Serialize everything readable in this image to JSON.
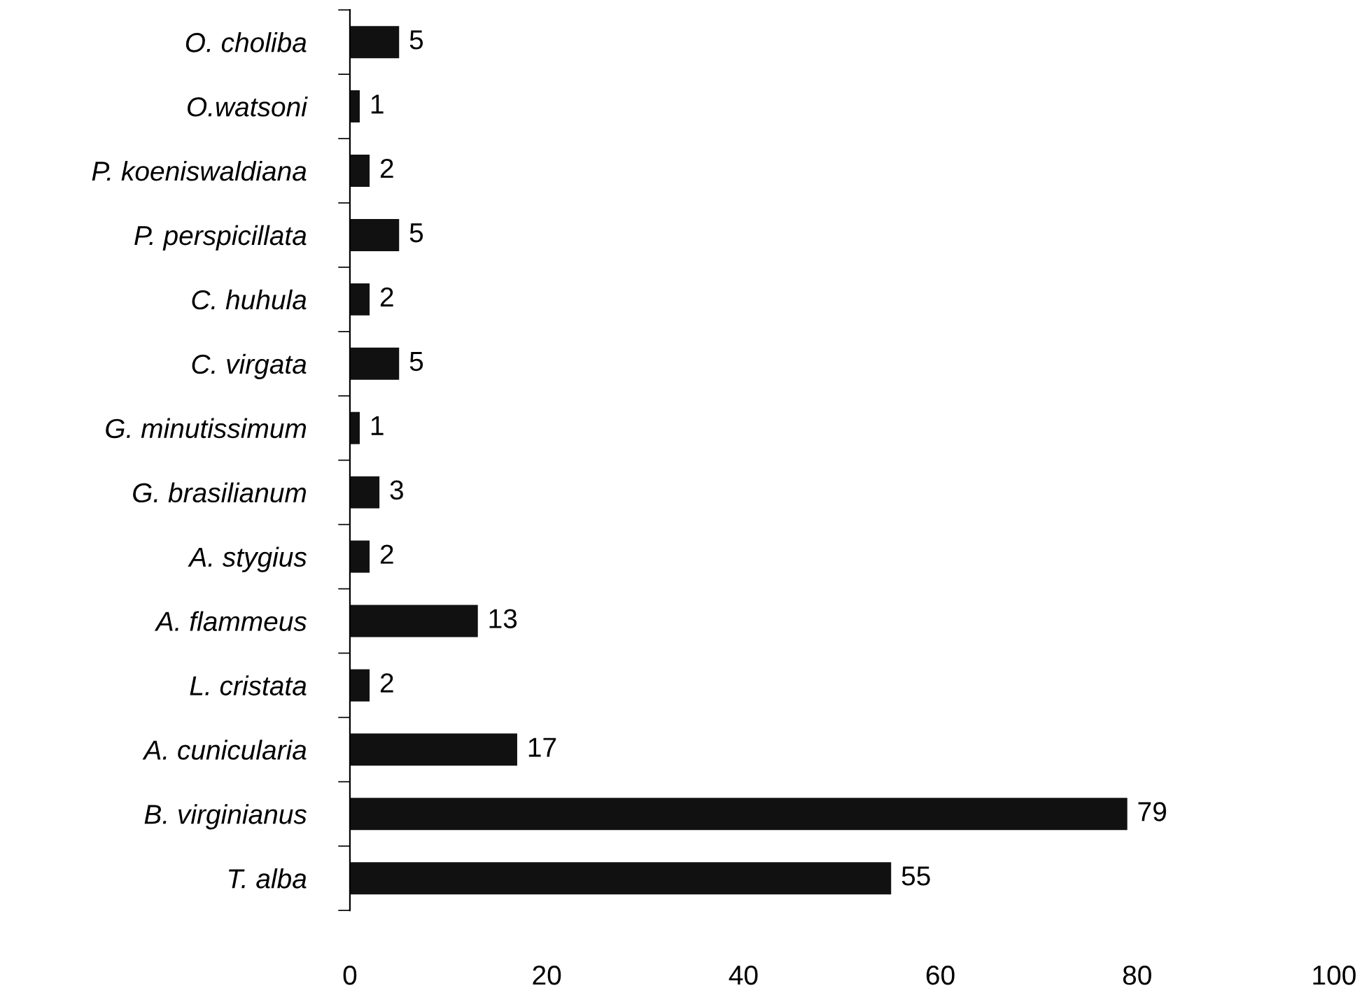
{
  "chart_data": {
    "type": "bar",
    "orientation": "horizontal",
    "categories": [
      "O. choliba",
      "O.watsoni",
      "P. koeniswaldiana",
      "P. perspicillata",
      "C. huhula",
      "C. virgata",
      "G. minutissimum",
      "G. brasilianum",
      "A. stygius",
      "A. flammeus",
      "L. cristata",
      "A. cunicularia",
      "B. virginianus",
      "T. alba"
    ],
    "values": [
      5,
      1,
      2,
      5,
      2,
      5,
      1,
      3,
      2,
      13,
      2,
      17,
      79,
      55
    ],
    "color": "#111111",
    "xlim": [
      0,
      100
    ],
    "xticks": [
      0,
      20,
      40,
      60,
      80,
      100
    ],
    "data_labels": true,
    "grid": false,
    "legend": false
  }
}
